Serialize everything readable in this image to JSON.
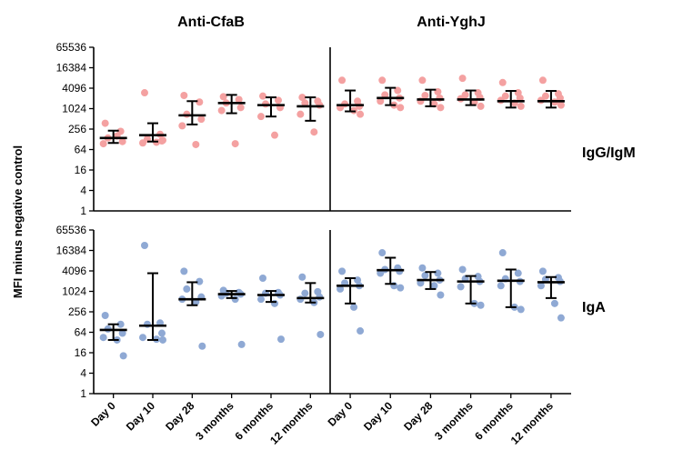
{
  "chart_data": {
    "type": "scatter",
    "ylabel": "MFI minus negative control",
    "y_scale": "log2",
    "yticks": [
      1,
      4,
      16,
      64,
      256,
      1024,
      4096,
      16384,
      65536
    ],
    "ylim": [
      1,
      65536
    ],
    "categories": [
      "Day 0",
      "Day 10",
      "Day 28",
      "3 months",
      "6 months",
      "12 months"
    ],
    "columns": [
      "Anti-CfaB",
      "Anti-YghJ"
    ],
    "rows": [
      "IgG/IgM",
      "IgA"
    ],
    "colors": {
      "IgG/IgM": "#f4a1a1",
      "IgA": "#8fa9d4"
    },
    "panels": [
      {
        "column": "Anti-CfaB",
        "row": "IgG/IgM",
        "groups": [
          {
            "category": "Day 0",
            "points": [
              380,
              220,
              140,
              110,
              95,
              160
            ],
            "median": 140,
            "range": [
              100,
              230
            ]
          },
          {
            "category": "Day 10",
            "points": [
              3000,
              180,
              130,
              115,
              100,
              105,
              120
            ],
            "median": 170,
            "range": [
              110,
              380
            ]
          },
          {
            "category": "Day 28",
            "points": [
              2500,
              1600,
              700,
              500,
              320,
              90
            ],
            "median": 650,
            "range": [
              350,
              1700
            ]
          },
          {
            "category": "3 months",
            "points": [
              2300,
              1900,
              1500,
              1100,
              900,
              95
            ],
            "median": 1500,
            "range": [
              750,
              2600
            ]
          },
          {
            "category": "6 months",
            "points": [
              2400,
              1800,
              1400,
              1100,
              600,
              170
            ],
            "median": 1300,
            "range": [
              600,
              2200
            ]
          },
          {
            "category": "12 months",
            "points": [
              2200,
              1700,
              1500,
              1300,
              700,
              210
            ],
            "median": 1200,
            "range": [
              450,
              2200
            ]
          }
        ]
      },
      {
        "column": "Anti-YghJ",
        "row": "IgG/IgM",
        "groups": [
          {
            "category": "Day 0",
            "points": [
              7000,
              1700,
              1400,
              1200,
              1100,
              900,
              700
            ],
            "median": 1300,
            "range": [
              850,
              3500
            ]
          },
          {
            "category": "Day 10",
            "points": [
              7000,
              3500,
              2600,
              2100,
              1700,
              1300,
              1100
            ],
            "median": 2100,
            "range": [
              1300,
              4200
            ]
          },
          {
            "category": "Day 28",
            "points": [
              7000,
              3200,
              2500,
              2100,
              1700,
              1400,
              1100
            ],
            "median": 1900,
            "range": [
              1200,
              3700
            ]
          },
          {
            "category": "3 months",
            "points": [
              8000,
              3000,
              2600,
              2200,
              2000,
              1600,
              1200
            ],
            "median": 1900,
            "range": [
              1300,
              3500
            ]
          },
          {
            "category": "6 months",
            "points": [
              6000,
              3000,
              2400,
              2100,
              1800,
              1500,
              1200
            ],
            "median": 1700,
            "range": [
              1100,
              3400
            ]
          },
          {
            "category": "12 months",
            "points": [
              7000,
              2800,
              2400,
              2100,
              1800,
              1600,
              1300
            ],
            "median": 1700,
            "range": [
              1100,
              3400
            ]
          }
        ]
      },
      {
        "column": "Anti-CfaB",
        "row": "IgA",
        "groups": [
          {
            "category": "Day 0",
            "points": [
              200,
              110,
              80,
              60,
              45,
              38,
              13
            ],
            "median": 75,
            "range": [
              38,
              110
            ]
          },
          {
            "category": "Day 10",
            "points": [
              23000,
              120,
              110,
              60,
              45,
              40,
              38
            ],
            "median": 100,
            "range": [
              38,
              3500
            ]
          },
          {
            "category": "Day 28",
            "points": [
              4000,
              2000,
              1200,
              700,
              600,
              500,
              25
            ],
            "median": 600,
            "range": [
              400,
              1900
            ]
          },
          {
            "category": "3 months",
            "points": [
              1100,
              950,
              900,
              850,
              750,
              600,
              28
            ],
            "median": 850,
            "range": [
              650,
              1050
            ]
          },
          {
            "category": "6 months",
            "points": [
              2500,
              950,
              900,
              800,
              600,
              450,
              40
            ],
            "median": 800,
            "range": [
              500,
              1050
            ]
          },
          {
            "category": "12 months",
            "points": [
              2700,
              1000,
              900,
              700,
              600,
              480,
              55
            ],
            "median": 650,
            "range": [
              480,
              1800
            ]
          }
        ]
      },
      {
        "column": "Anti-YghJ",
        "row": "IgA",
        "groups": [
          {
            "category": "Day 0",
            "points": [
              4000,
              2200,
              1800,
              1500,
              1200,
              350,
              70
            ],
            "median": 1500,
            "range": [
              450,
              2500
            ]
          },
          {
            "category": "Day 10",
            "points": [
              14000,
              5000,
              4500,
              4000,
              3500,
              1500,
              1300
            ],
            "median": 4300,
            "range": [
              1700,
              10000
            ]
          },
          {
            "category": "Day 28",
            "points": [
              5000,
              3500,
              3000,
              2200,
              1800,
              1500,
              800
            ],
            "median": 2200,
            "range": [
              1200,
              3800
            ]
          },
          {
            "category": "3 months",
            "points": [
              4500,
              2800,
              2400,
              2000,
              1400,
              450,
              400
            ],
            "median": 2000,
            "range": [
              450,
              2900
            ]
          },
          {
            "category": "6 months",
            "points": [
              14000,
              3500,
              2400,
              2000,
              1500,
              350,
              300
            ],
            "median": 2100,
            "range": [
              350,
              4500
            ]
          },
          {
            "category": "12 months",
            "points": [
              4000,
              2600,
              2300,
              2000,
              1500,
              450,
              170
            ],
            "median": 1900,
            "range": [
              650,
              2700
            ]
          }
        ]
      }
    ]
  }
}
